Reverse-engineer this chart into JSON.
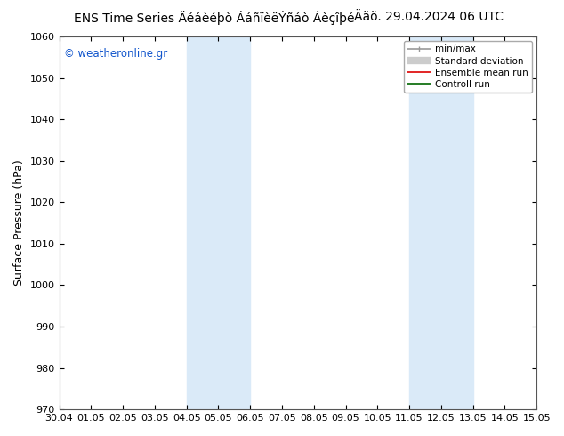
{
  "title_left": "ENS Time Series Äéáèéþò ÁáñïèëÝñáò Áèçîþé",
  "title_right": "Ääö. 29.04.2024 06 UTC",
  "ylabel": "Surface Pressure (hPa)",
  "ylim": [
    970,
    1060
  ],
  "yticks": [
    970,
    980,
    990,
    1000,
    1010,
    1020,
    1030,
    1040,
    1050,
    1060
  ],
  "xtick_labels": [
    "30.04",
    "01.05",
    "02.05",
    "03.05",
    "04.05",
    "05.05",
    "06.05",
    "07.05",
    "08.05",
    "09.05",
    "10.05",
    "11.05",
    "12.05",
    "13.05",
    "14.05",
    "15.05"
  ],
  "shaded_regions": [
    {
      "xstart": 4,
      "xend": 6,
      "color": "#daeaf8"
    },
    {
      "xstart": 11,
      "xend": 13,
      "color": "#daeaf8"
    }
  ],
  "watermark": "© weatheronline.gr",
  "watermark_color": "#1155cc",
  "bg_color": "#ffffff",
  "plot_bg_color": "#ffffff",
  "legend_entries": [
    {
      "label": "min/max",
      "color": "#999999",
      "lw": 1.2
    },
    {
      "label": "Standard deviation",
      "color": "#cccccc",
      "lw": 6
    },
    {
      "label": "Ensemble mean run",
      "color": "#dd0000",
      "lw": 1.2
    },
    {
      "label": "Controll run",
      "color": "#006600",
      "lw": 1.2
    }
  ],
  "title_fontsize": 10,
  "ylabel_fontsize": 9,
  "tick_fontsize": 8,
  "legend_fontsize": 7.5,
  "watermark_fontsize": 8.5
}
